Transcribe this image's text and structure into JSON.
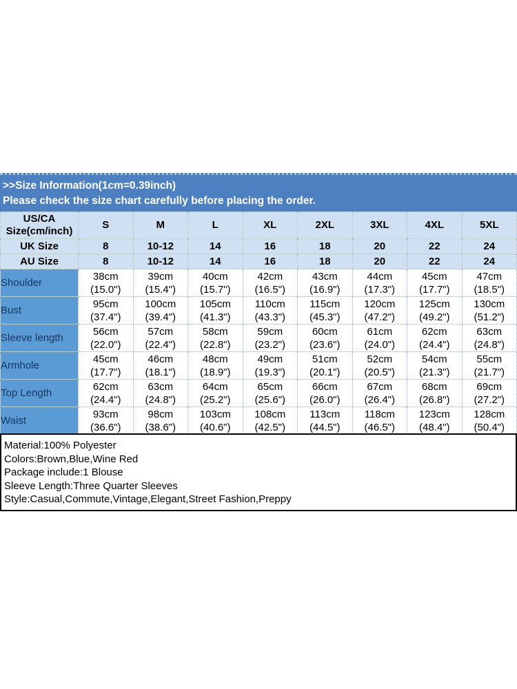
{
  "banner": {
    "title": ">>Size Information(1cm=0.39inch)",
    "subtitle": "Please check the size chart carefully before placing the order."
  },
  "size_table": {
    "corner": {
      "line1": "US/CA",
      "line2": "Size(cm/inch)"
    },
    "size_columns": [
      "S",
      "M",
      "L",
      "XL",
      "2XL",
      "3XL",
      "4XL",
      "5XL"
    ],
    "region_rows": [
      {
        "label": "UK Size",
        "values": [
          "8",
          "10-12",
          "14",
          "16",
          "18",
          "20",
          "22",
          "24"
        ]
      },
      {
        "label": "AU Size",
        "values": [
          "8",
          "10-12",
          "14",
          "16",
          "18",
          "20",
          "22",
          "24"
        ]
      }
    ],
    "measurement_rows": [
      {
        "label": "Shoulder",
        "cells": [
          {
            "cm": "38cm",
            "inch": "(15.0\")"
          },
          {
            "cm": "39cm",
            "inch": "(15.4\")"
          },
          {
            "cm": "40cm",
            "inch": "(15.7\")"
          },
          {
            "cm": "42cm",
            "inch": "(16.5\")"
          },
          {
            "cm": "43cm",
            "inch": "(16.9\")"
          },
          {
            "cm": "44cm",
            "inch": "(17.3\")"
          },
          {
            "cm": "45cm",
            "inch": "(17.7\")"
          },
          {
            "cm": "47cm",
            "inch": "(18.5\")"
          }
        ]
      },
      {
        "label": "Bust",
        "cells": [
          {
            "cm": "95cm",
            "inch": "(37.4\")"
          },
          {
            "cm": "100cm",
            "inch": "(39.4\")"
          },
          {
            "cm": "105cm",
            "inch": "(41.3\")"
          },
          {
            "cm": "110cm",
            "inch": "(43.3\")"
          },
          {
            "cm": "115cm",
            "inch": "(45.3\")"
          },
          {
            "cm": "120cm",
            "inch": "(47.2\")"
          },
          {
            "cm": "125cm",
            "inch": "(49.2\")"
          },
          {
            "cm": "130cm",
            "inch": "(51.2\")"
          }
        ]
      },
      {
        "label": "Sleeve length",
        "cells": [
          {
            "cm": "56cm",
            "inch": "(22.0\")"
          },
          {
            "cm": "57cm",
            "inch": "(22.4\")"
          },
          {
            "cm": "58cm",
            "inch": "(22.8\")"
          },
          {
            "cm": "59cm",
            "inch": "(23.2\")"
          },
          {
            "cm": "60cm",
            "inch": "(23.6\")"
          },
          {
            "cm": "61cm",
            "inch": "(24.0\")"
          },
          {
            "cm": "62cm",
            "inch": "(24.4\")"
          },
          {
            "cm": "63cm",
            "inch": "(24.8\")"
          }
        ]
      },
      {
        "label": "Armhole",
        "cells": [
          {
            "cm": "45cm",
            "inch": "(17.7\")"
          },
          {
            "cm": "46cm",
            "inch": "(18.1\")"
          },
          {
            "cm": "48cm",
            "inch": "(18.9\")"
          },
          {
            "cm": "49cm",
            "inch": "(19.3\")"
          },
          {
            "cm": "51cm",
            "inch": "(20.1\")"
          },
          {
            "cm": "52cm",
            "inch": "(20.5\")"
          },
          {
            "cm": "54cm",
            "inch": "(21.3\")"
          },
          {
            "cm": "55cm",
            "inch": "(21.7\")"
          }
        ]
      },
      {
        "label": "Top Length",
        "cells": [
          {
            "cm": "62cm",
            "inch": "(24.4\")"
          },
          {
            "cm": "63cm",
            "inch": "(24.8\")"
          },
          {
            "cm": "64cm",
            "inch": "(25.2\")"
          },
          {
            "cm": "65cm",
            "inch": "(25.6\")"
          },
          {
            "cm": "66cm",
            "inch": "(26.0\")"
          },
          {
            "cm": "67cm",
            "inch": "(26.4\")"
          },
          {
            "cm": "68cm",
            "inch": "(26.8\")"
          },
          {
            "cm": "69cm",
            "inch": "(27.2\")"
          }
        ]
      },
      {
        "label": "Waist",
        "cells": [
          {
            "cm": "93cm",
            "inch": "(36.6\")"
          },
          {
            "cm": "98cm",
            "inch": "(38.6\")"
          },
          {
            "cm": "103cm",
            "inch": "(40.6\")"
          },
          {
            "cm": "108cm",
            "inch": "(42.5\")"
          },
          {
            "cm": "113cm",
            "inch": "(44.5\")"
          },
          {
            "cm": "118cm",
            "inch": "(46.5\")"
          },
          {
            "cm": "123cm",
            "inch": "(48.4\")"
          },
          {
            "cm": "128cm",
            "inch": "(50.4\")"
          }
        ]
      }
    ]
  },
  "product_details": {
    "lines": [
      "Material:100% Polyester",
      "Colors:Brown,Blue,Wine Red",
      "Package include:1 Blouse",
      "Sleeve Length:Three Quarter Sleeves",
      "Style:Casual,Commute,Vintage,Elegant,Street Fashion,Preppy"
    ]
  },
  "colors": {
    "banner_blue": "#4d80c0",
    "header_light_blue": "#cfe0f2",
    "label_column_blue": "#5b9bd5",
    "label_text_navy": "#16375f",
    "grid_dotted": "#8fa9c4",
    "details_border": "#000000"
  }
}
